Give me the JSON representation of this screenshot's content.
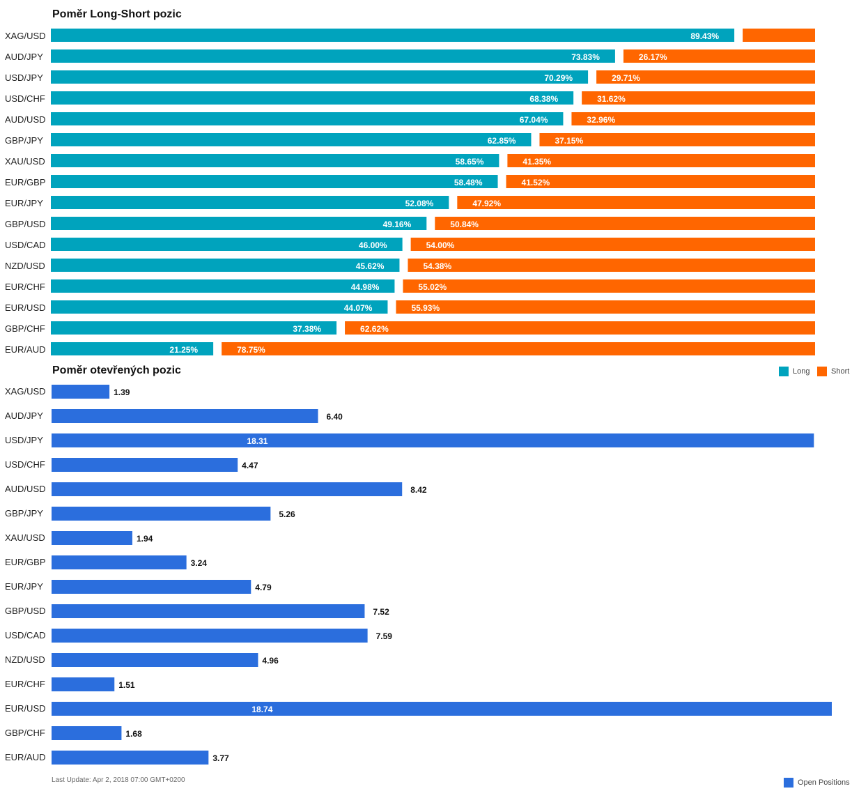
{
  "colors": {
    "long": "#00a3bd",
    "short": "#ff6600",
    "open": "#2b6edd"
  },
  "chart_data": [
    {
      "type": "bar",
      "title": "Poměr Long-Short pozic",
      "stacked": true,
      "orientation": "horizontal",
      "categories": [
        "XAG/USD",
        "AUD/JPY",
        "USD/JPY",
        "USD/CHF",
        "AUD/USD",
        "GBP/JPY",
        "XAU/USD",
        "EUR/GBP",
        "EUR/JPY",
        "GBP/USD",
        "USD/CAD",
        "NZD/USD",
        "EUR/CHF",
        "EUR/USD",
        "GBP/CHF",
        "EUR/AUD"
      ],
      "series": [
        {
          "name": "Long",
          "values": [
            89.43,
            73.83,
            70.29,
            68.38,
            67.04,
            62.85,
            58.65,
            58.48,
            52.08,
            49.16,
            46.0,
            45.62,
            44.98,
            44.07,
            37.38,
            21.25
          ],
          "labels": [
            "89.43%",
            "73.83%",
            "70.29%",
            "68.38%",
            "67.04%",
            "62.85%",
            "58.65%",
            "58.48%",
            "52.08%",
            "49.16%",
            "46.00%",
            "45.62%",
            "44.98%",
            "44.07%",
            "37.38%",
            "21.25%"
          ]
        },
        {
          "name": "Short",
          "values": [
            10.57,
            26.17,
            29.71,
            31.62,
            32.96,
            37.15,
            41.35,
            41.52,
            47.92,
            50.84,
            54.0,
            54.38,
            55.02,
            55.93,
            62.62,
            78.75
          ],
          "labels": [
            "",
            "26.17%",
            "29.71%",
            "31.62%",
            "32.96%",
            "37.15%",
            "41.35%",
            "41.52%",
            "47.92%",
            "50.84%",
            "54.00%",
            "54.38%",
            "55.02%",
            "55.93%",
            "62.62%",
            "78.75%"
          ]
        }
      ],
      "legend": [
        "Long",
        "Short"
      ],
      "legend_position": "top-right"
    },
    {
      "type": "bar",
      "title": "Poměr otevřených pozic",
      "orientation": "horizontal",
      "categories": [
        "XAG/USD",
        "AUD/JPY",
        "USD/JPY",
        "USD/CHF",
        "AUD/USD",
        "GBP/JPY",
        "XAU/USD",
        "EUR/GBP",
        "EUR/JPY",
        "GBP/USD",
        "USD/CAD",
        "NZD/USD",
        "EUR/CHF",
        "EUR/USD",
        "GBP/CHF",
        "EUR/AUD"
      ],
      "series": [
        {
          "name": "Open Positions",
          "values": [
            1.39,
            6.4,
            18.31,
            4.47,
            8.42,
            5.26,
            1.94,
            3.24,
            4.79,
            7.52,
            7.59,
            4.96,
            1.51,
            18.74,
            1.68,
            3.77
          ],
          "labels": [
            "1.39",
            "6.40",
            "18.31",
            "4.47",
            "8.42",
            "5.26",
            "1.94",
            "3.24",
            "4.79",
            "7.52",
            "7.59",
            "4.96",
            "1.51",
            "18.74",
            "1.68",
            "3.77"
          ]
        }
      ],
      "legend": [
        "Open Positions"
      ],
      "legend_position": "bottom-right"
    }
  ],
  "footer": {
    "last_update": "Last Update: Apr 2, 2018 07:00 GMT+0200"
  }
}
